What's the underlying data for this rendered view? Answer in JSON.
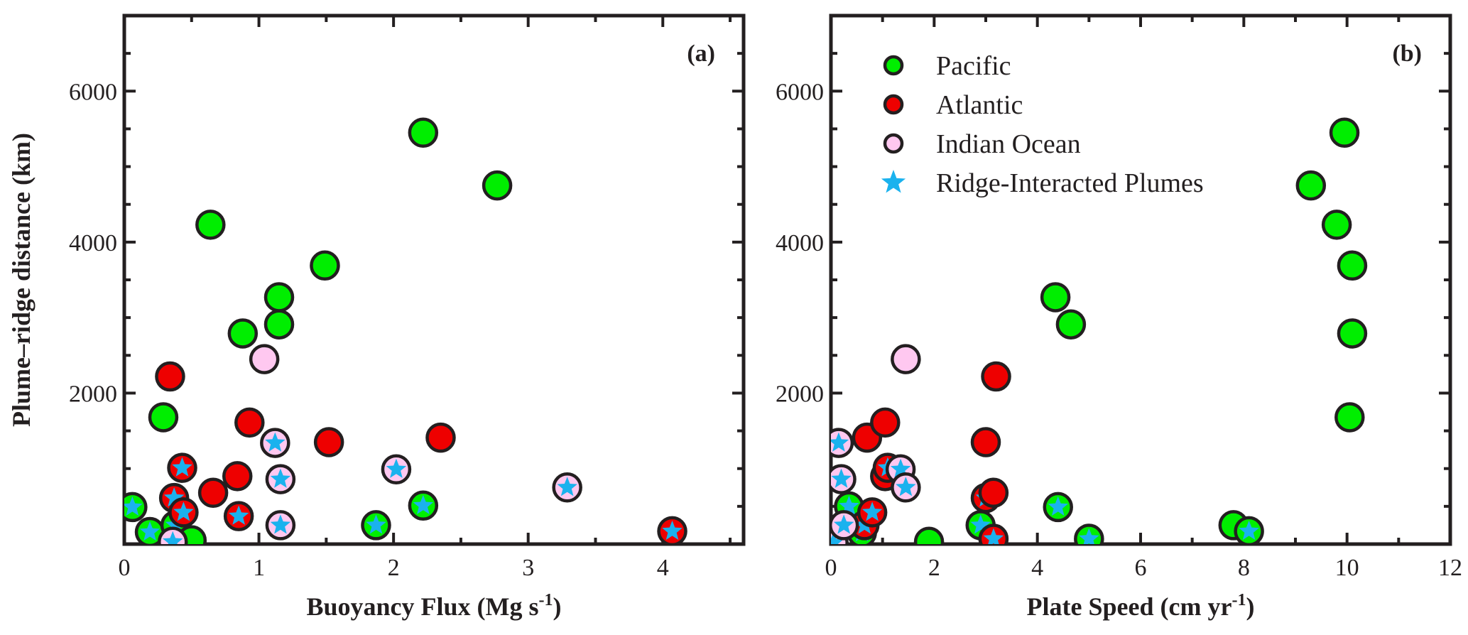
{
  "chart_data": [
    {
      "type": "scatter",
      "panel_label": "(a)",
      "xlabel": "Buoyancy Flux (Mg s",
      "xlabel_sup": "-1",
      "xlabel_end": ")",
      "ylabel": "Plume–ridge distance (km)",
      "xlim": [
        0,
        4.6
      ],
      "ylim": [
        0,
        7000
      ],
      "xticks": [
        0,
        1,
        2,
        3,
        4
      ],
      "xtick_labels": [
        "0",
        "1",
        "2",
        "3",
        "4"
      ],
      "yticks": [
        2000,
        4000,
        6000
      ],
      "ytick_labels": [
        "2000",
        "4000",
        "6000"
      ],
      "series": [
        {
          "name": "Pacific",
          "points": [
            {
              "x": 0.06,
              "y": 490,
              "ridge": true
            },
            {
              "x": 0.19,
              "y": 160,
              "ridge": true
            },
            {
              "x": 0.29,
              "y": 1680,
              "ridge": false
            },
            {
              "x": 0.38,
              "y": 250,
              "ridge": true
            },
            {
              "x": 0.5,
              "y": 50,
              "ridge": false
            },
            {
              "x": 0.64,
              "y": 4230,
              "ridge": false
            },
            {
              "x": 0.88,
              "y": 2790,
              "ridge": false
            },
            {
              "x": 1.15,
              "y": 3270,
              "ridge": false
            },
            {
              "x": 1.15,
              "y": 2910,
              "ridge": false
            },
            {
              "x": 1.49,
              "y": 3690,
              "ridge": false
            },
            {
              "x": 1.87,
              "y": 250,
              "ridge": true
            },
            {
              "x": 2.22,
              "y": 5450,
              "ridge": false
            },
            {
              "x": 2.22,
              "y": 510,
              "ridge": true
            },
            {
              "x": 2.77,
              "y": 4750,
              "ridge": false
            }
          ]
        },
        {
          "name": "Atlantic",
          "points": [
            {
              "x": 0.34,
              "y": 2220,
              "ridge": false
            },
            {
              "x": 0.37,
              "y": 610,
              "ridge": true
            },
            {
              "x": 0.43,
              "y": 1010,
              "ridge": true
            },
            {
              "x": 0.44,
              "y": 420,
              "ridge": true
            },
            {
              "x": 0.66,
              "y": 680,
              "ridge": false
            },
            {
              "x": 0.84,
              "y": 900,
              "ridge": false
            },
            {
              "x": 0.85,
              "y": 370,
              "ridge": true
            },
            {
              "x": 0.93,
              "y": 1610,
              "ridge": false
            },
            {
              "x": 1.52,
              "y": 1350,
              "ridge": false
            },
            {
              "x": 2.35,
              "y": 1410,
              "ridge": false
            },
            {
              "x": 4.07,
              "y": 170,
              "ridge": true
            }
          ]
        },
        {
          "name": "Indian Ocean",
          "points": [
            {
              "x": 0.36,
              "y": 30,
              "ridge": true
            },
            {
              "x": 1.04,
              "y": 2450,
              "ridge": false
            },
            {
              "x": 1.12,
              "y": 1340,
              "ridge": true
            },
            {
              "x": 1.16,
              "y": 860,
              "ridge": true
            },
            {
              "x": 1.16,
              "y": 250,
              "ridge": true
            },
            {
              "x": 2.02,
              "y": 990,
              "ridge": true
            },
            {
              "x": 3.29,
              "y": 750,
              "ridge": true
            }
          ]
        }
      ]
    },
    {
      "type": "scatter",
      "panel_label": "(b)",
      "xlabel": "Plate Speed (cm yr",
      "xlabel_sup": "-1",
      "xlabel_end": ")",
      "ylabel": "",
      "xlim": [
        0,
        12
      ],
      "ylim": [
        0,
        7000
      ],
      "xticks": [
        0,
        2,
        4,
        6,
        8,
        10,
        12
      ],
      "xtick_labels": [
        "0",
        "2",
        "4",
        "6",
        "8",
        "10",
        "12"
      ],
      "yticks": [
        2000,
        4000,
        6000
      ],
      "ytick_labels": [
        "2000",
        "4000",
        "6000"
      ],
      "legend_position": "top-left",
      "series": [
        {
          "name": "Pacific",
          "points": [
            {
              "x": 0.35,
              "y": 500,
              "ridge": true
            },
            {
              "x": 0.6,
              "y": 150,
              "ridge": true
            },
            {
              "x": 1.9,
              "y": 30,
              "ridge": false
            },
            {
              "x": 2.9,
              "y": 250,
              "ridge": true
            },
            {
              "x": 4.35,
              "y": 3270,
              "ridge": false
            },
            {
              "x": 4.4,
              "y": 490,
              "ridge": true
            },
            {
              "x": 4.65,
              "y": 2910,
              "ridge": false
            },
            {
              "x": 5.0,
              "y": 70,
              "ridge": true
            },
            {
              "x": 7.8,
              "y": 250,
              "ridge": false
            },
            {
              "x": 8.1,
              "y": 170,
              "ridge": true
            },
            {
              "x": 9.3,
              "y": 4750,
              "ridge": false
            },
            {
              "x": 9.8,
              "y": 4230,
              "ridge": false
            },
            {
              "x": 9.95,
              "y": 5450,
              "ridge": false
            },
            {
              "x": 10.05,
              "y": 1680,
              "ridge": false
            },
            {
              "x": 10.1,
              "y": 3690,
              "ridge": false
            },
            {
              "x": 10.1,
              "y": 2790,
              "ridge": false
            }
          ]
        },
        {
          "name": "Atlantic",
          "points": [
            {
              "x": 0.65,
              "y": 250,
              "ridge": true
            },
            {
              "x": 0.7,
              "y": 1410,
              "ridge": false
            },
            {
              "x": 0.8,
              "y": 420,
              "ridge": true
            },
            {
              "x": 1.05,
              "y": 1610,
              "ridge": false
            },
            {
              "x": 1.05,
              "y": 900,
              "ridge": false
            },
            {
              "x": 1.1,
              "y": 1010,
              "ridge": true
            },
            {
              "x": 3.0,
              "y": 1350,
              "ridge": false
            },
            {
              "x": 3.0,
              "y": 610,
              "ridge": true
            },
            {
              "x": 3.15,
              "y": 680,
              "ridge": false
            },
            {
              "x": 3.15,
              "y": 70,
              "ridge": true
            },
            {
              "x": 3.2,
              "y": 2220,
              "ridge": false
            }
          ]
        },
        {
          "name": "Indian Ocean",
          "points": [
            {
              "x": 0.05,
              "y": 20,
              "ridge": true
            },
            {
              "x": 0.15,
              "y": 1340,
              "ridge": true
            },
            {
              "x": 0.2,
              "y": 860,
              "ridge": true
            },
            {
              "x": 0.25,
              "y": 250,
              "ridge": true
            },
            {
              "x": 1.35,
              "y": 990,
              "ridge": true
            },
            {
              "x": 1.45,
              "y": 750,
              "ridge": true
            },
            {
              "x": 1.45,
              "y": 2450,
              "ridge": false
            }
          ]
        }
      ],
      "legend": [
        {
          "label": "Pacific",
          "marker": "circle",
          "color": "#00ee00"
        },
        {
          "label": "Atlantic",
          "marker": "circle",
          "color": "#ee0000"
        },
        {
          "label": "Indian Ocean",
          "marker": "circle",
          "color": "#ffc8f0"
        },
        {
          "label": "Ridge-Interacted Plumes",
          "marker": "star",
          "color": "#1ab2ee"
        }
      ]
    }
  ],
  "colors": {
    "Pacific": "#00ee00",
    "Atlantic": "#ee0000",
    "Indian Ocean": "#ffc8f0",
    "star": "#1ab2ee",
    "axis": "#231f20"
  }
}
